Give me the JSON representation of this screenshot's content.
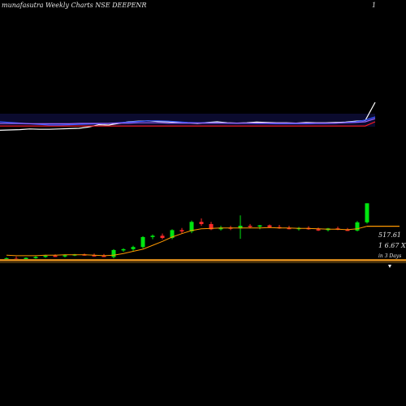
{
  "header": {
    "title": "munafasutra Weekly Charts NSE DEEPENR",
    "right_label": "1"
  },
  "info": {
    "price_label": "517.61",
    "volume_label": "1 6.67 X",
    "days_label": "in 3 Days"
  },
  "colors": {
    "up": "#00e60f",
    "down": "#ff2a2a",
    "ma": "#ff9900",
    "volume_band": "#c8801a",
    "background": "#000000"
  },
  "chart_data": [
    {
      "type": "line",
      "panel": "indicator",
      "series": [
        {
          "color": "#ffffff",
          "values": [
            4,
            5,
            6,
            8,
            7,
            7,
            8,
            9,
            10,
            14,
            21,
            20,
            25,
            30,
            32,
            33,
            31,
            30,
            28,
            27,
            25,
            28,
            30,
            27,
            26,
            27,
            29,
            28,
            27,
            27,
            26,
            28,
            27,
            27,
            28,
            29,
            32,
            34,
            90
          ]
        },
        {
          "color": "#ff1a1a",
          "values": [
            17,
            17,
            17,
            17,
            17,
            17,
            17,
            17,
            17,
            17,
            17,
            17,
            17,
            17,
            17,
            17,
            17,
            17,
            17,
            17,
            17,
            17,
            17,
            17,
            17,
            17,
            17,
            17,
            17,
            17,
            17,
            17,
            17,
            17,
            17,
            17,
            17,
            17,
            30
          ]
        },
        {
          "color": "#3355ff",
          "values": [
            30,
            28,
            26,
            24,
            22,
            20,
            20,
            21,
            22,
            23,
            24,
            25,
            27,
            29,
            31,
            33,
            33,
            32,
            30,
            28,
            27,
            27,
            27,
            26,
            26,
            26,
            25,
            25,
            24,
            24,
            24,
            24,
            25,
            25,
            26,
            28,
            30,
            35,
            45
          ]
        },
        {
          "color": "#9966ff",
          "values": [
            25,
            25,
            25,
            24,
            24,
            24,
            24,
            24,
            25,
            25,
            25,
            25,
            26,
            26,
            27,
            27,
            27,
            26,
            26,
            26,
            26,
            26,
            26,
            26,
            26,
            26,
            26,
            26,
            26,
            26,
            26,
            26,
            26,
            26,
            26,
            27,
            28,
            30,
            40
          ]
        }
      ]
    },
    {
      "type": "candlestick",
      "panel": "price",
      "candles": [
        {
          "o": 70,
          "h": 75,
          "l": 66,
          "c": 73
        },
        {
          "o": 72,
          "h": 77,
          "l": 67,
          "c": 68
        },
        {
          "o": 68,
          "h": 75,
          "l": 66,
          "c": 74
        },
        {
          "o": 74,
          "h": 78,
          "l": 72,
          "c": 76
        },
        {
          "o": 76,
          "h": 81,
          "l": 74,
          "c": 79
        },
        {
          "o": 79,
          "h": 82,
          "l": 76,
          "c": 78
        },
        {
          "o": 78,
          "h": 82,
          "l": 75,
          "c": 80
        },
        {
          "o": 80,
          "h": 83,
          "l": 78,
          "c": 82
        },
        {
          "o": 82,
          "h": 84,
          "l": 79,
          "c": 80
        },
        {
          "o": 80,
          "h": 84,
          "l": 77,
          "c": 79
        },
        {
          "o": 79,
          "h": 83,
          "l": 76,
          "c": 76
        },
        {
          "o": 76,
          "h": 94,
          "l": 73,
          "c": 92
        },
        {
          "o": 92,
          "h": 96,
          "l": 88,
          "c": 94
        },
        {
          "o": 94,
          "h": 102,
          "l": 90,
          "c": 99
        },
        {
          "o": 99,
          "h": 124,
          "l": 96,
          "c": 122
        },
        {
          "o": 122,
          "h": 128,
          "l": 117,
          "c": 125
        },
        {
          "o": 125,
          "h": 130,
          "l": 117,
          "c": 120
        },
        {
          "o": 120,
          "h": 140,
          "l": 117,
          "c": 138
        },
        {
          "o": 138,
          "h": 143,
          "l": 130,
          "c": 135
        },
        {
          "o": 135,
          "h": 160,
          "l": 131,
          "c": 157
        },
        {
          "o": 157,
          "h": 165,
          "l": 148,
          "c": 152
        },
        {
          "o": 152,
          "h": 157,
          "l": 138,
          "c": 140
        },
        {
          "o": 140,
          "h": 148,
          "l": 137,
          "c": 144
        },
        {
          "o": 144,
          "h": 148,
          "l": 138,
          "c": 142
        },
        {
          "o": 142,
          "h": 172,
          "l": 118,
          "c": 148
        },
        {
          "o": 148,
          "h": 152,
          "l": 142,
          "c": 146
        },
        {
          "o": 146,
          "h": 150,
          "l": 140,
          "c": 149
        },
        {
          "o": 149,
          "h": 151,
          "l": 144,
          "c": 145
        },
        {
          "o": 145,
          "h": 150,
          "l": 141,
          "c": 143
        },
        {
          "o": 143,
          "h": 148,
          "l": 140,
          "c": 141
        },
        {
          "o": 141,
          "h": 145,
          "l": 137,
          "c": 143
        },
        {
          "o": 143,
          "h": 147,
          "l": 139,
          "c": 140
        },
        {
          "o": 140,
          "h": 144,
          "l": 136,
          "c": 138
        },
        {
          "o": 138,
          "h": 143,
          "l": 135,
          "c": 142
        },
        {
          "o": 142,
          "h": 146,
          "l": 138,
          "c": 139
        },
        {
          "o": 139,
          "h": 143,
          "l": 136,
          "c": 137
        },
        {
          "o": 137,
          "h": 159,
          "l": 135,
          "c": 156
        },
        {
          "o": 156,
          "h": 200,
          "l": 153,
          "c": 200
        }
      ],
      "moving_average": [
        80,
        79,
        79,
        79,
        80,
        80,
        81,
        81,
        81,
        80,
        79,
        80,
        84,
        89,
        94,
        103,
        112,
        122,
        130,
        137,
        141,
        142,
        143,
        143,
        143,
        143,
        143,
        144,
        143,
        143,
        142,
        142,
        141,
        140,
        140,
        139,
        141,
        147
      ]
    }
  ]
}
